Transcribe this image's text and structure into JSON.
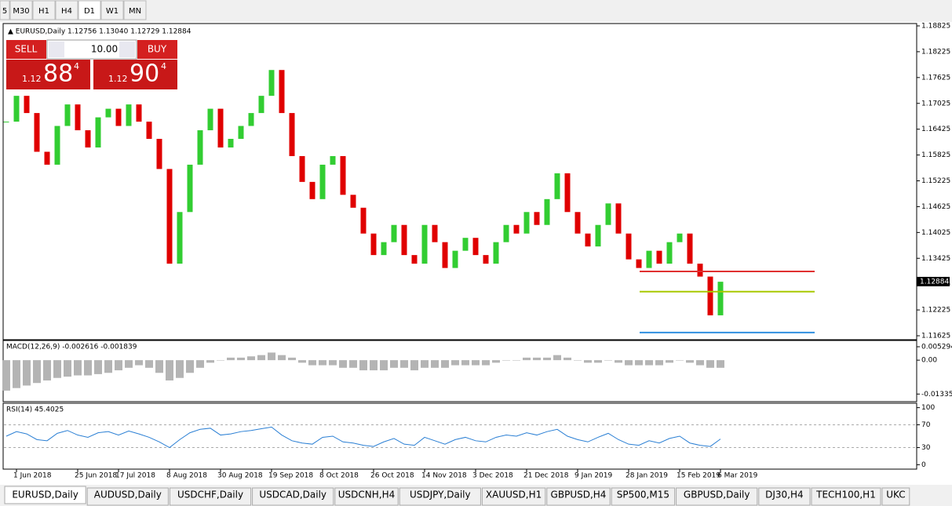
{
  "toolbar": {
    "timeframes": [
      "5",
      "M30",
      "H1",
      "H4",
      "D1",
      "W1",
      "MN"
    ]
  },
  "chart_header": "EURUSD,Daily  1.12756 1.13040 1.12729 1.12884",
  "trade_panel": {
    "sell": "SELL",
    "buy": "BUY",
    "lots": "10.00",
    "sell_big": "1.12",
    "sell_digits": "88",
    "sell_pip": "4",
    "buy_big": "1.12",
    "buy_digits": "90",
    "buy_pip": "4"
  },
  "price_chart": {
    "type": "candlestick",
    "up_color": "#32cd32",
    "down_color": "#e00000",
    "categories": [
      null,
      "1 Jun 2018",
      null,
      null,
      null,
      null,
      null,
      "25 Jun 2018",
      null,
      null,
      null,
      "17 Jul 2018",
      null,
      null,
      null,
      null,
      "8 Aug 2018",
      null,
      null,
      null,
      null,
      "30 Aug 2018",
      null,
      null,
      null,
      null,
      "19 Sep 2018",
      null,
      null,
      null,
      null,
      "8 Oct 2018",
      null,
      null,
      null,
      null,
      "26 Oct 2018",
      null,
      null,
      null,
      null,
      "14 Nov 2018",
      null,
      null,
      null,
      null,
      "3 Dec 2018",
      null,
      null,
      null,
      null,
      "21 Dec 2018",
      null,
      null,
      null,
      null,
      "9 Jan 2019",
      null,
      null,
      null,
      null,
      "28 Jan 2019",
      null,
      null,
      null,
      null,
      "15 Feb 2019",
      null,
      null,
      null,
      "6 Mar 2019"
    ],
    "closes": [
      1.166,
      1.172,
      1.168,
      1.159,
      1.156,
      1.165,
      1.17,
      1.164,
      1.16,
      1.167,
      1.169,
      1.165,
      1.17,
      1.166,
      1.162,
      1.155,
      1.133,
      1.145,
      1.156,
      1.164,
      1.169,
      1.16,
      1.162,
      1.165,
      1.168,
      1.172,
      1.178,
      1.168,
      1.158,
      1.152,
      1.148,
      1.156,
      1.158,
      1.149,
      1.146,
      1.14,
      1.135,
      1.138,
      1.142,
      1.135,
      1.133,
      1.142,
      1.138,
      1.132,
      1.136,
      1.139,
      1.135,
      1.133,
      1.138,
      1.142,
      1.14,
      1.145,
      1.142,
      1.148,
      1.154,
      1.145,
      1.14,
      1.137,
      1.142,
      1.147,
      1.14,
      1.134,
      1.132,
      1.136,
      1.133,
      1.138,
      1.14,
      1.133,
      1.13,
      1.121,
      1.1288
    ],
    "ylim": [
      1.11625,
      1.18825
    ],
    "yticks": [
      1.18825,
      1.18225,
      1.17625,
      1.17025,
      1.16425,
      1.15825,
      1.15225,
      1.14625,
      1.14025,
      1.13425,
      1.12825,
      1.12225,
      1.11625
    ],
    "levels": [
      {
        "value": 1.1312,
        "color": "#e03030"
      },
      {
        "value": 1.1265,
        "color": "#a8c800"
      },
      {
        "value": 1.117,
        "color": "#3090e0"
      }
    ],
    "current_price": 1.12884
  },
  "macd": {
    "title": "MACD(12,26,9) -0.002616 -0.001839",
    "color": "#b4b4b4",
    "values": [
      -0.012,
      -0.011,
      -0.01,
      -0.009,
      -0.008,
      -0.007,
      -0.0065,
      -0.006,
      -0.006,
      -0.0055,
      -0.005,
      -0.004,
      -0.003,
      -0.002,
      -0.003,
      -0.005,
      -0.008,
      -0.007,
      -0.005,
      -0.003,
      -0.001,
      0,
      0.001,
      0.001,
      0.0015,
      0.002,
      0.003,
      0.002,
      0.001,
      -0.001,
      -0.002,
      -0.002,
      -0.002,
      -0.003,
      -0.003,
      -0.004,
      -0.004,
      -0.004,
      -0.003,
      -0.003,
      -0.004,
      -0.003,
      -0.003,
      -0.003,
      -0.002,
      -0.002,
      -0.002,
      -0.002,
      -0.001,
      0,
      0,
      0.001,
      0.001,
      0.001,
      0.002,
      0.001,
      0,
      -0.001,
      -0.001,
      0,
      -0.001,
      -0.002,
      -0.002,
      -0.002,
      -0.002,
      -0.001,
      0,
      -0.001,
      -0.002,
      -0.003,
      -0.003
    ],
    "ylim": [
      -0.0145,
      0.0056
    ],
    "yticks": [
      0.005294,
      {
        "value": 0,
        "label": "0.00"
      },
      -0.013353
    ]
  },
  "rsi": {
    "title": "RSI(14) 45.4025",
    "color": "#2a7fd4",
    "values": [
      50,
      58,
      54,
      44,
      42,
      55,
      60,
      52,
      48,
      56,
      58,
      52,
      59,
      54,
      48,
      40,
      30,
      44,
      56,
      62,
      64,
      52,
      54,
      58,
      60,
      63,
      66,
      52,
      42,
      38,
      36,
      48,
      50,
      40,
      38,
      34,
      32,
      40,
      46,
      36,
      34,
      48,
      42,
      36,
      44,
      48,
      42,
      40,
      48,
      52,
      50,
      56,
      52,
      58,
      62,
      50,
      44,
      40,
      48,
      55,
      44,
      36,
      34,
      42,
      38,
      46,
      50,
      38,
      34,
      32,
      45
    ],
    "ylim": [
      -5,
      105
    ],
    "yticks": [
      100,
      70,
      30,
      0
    ]
  },
  "bottom_tabs": [
    "EURUSD,Daily",
    "AUDUSD,Daily",
    "USDCHF,Daily",
    "USDCAD,Daily",
    "USDCNH,H4",
    "USDJPY,Daily",
    "XAUUSD,H1",
    "GBPUSD,H4",
    "SP500,M15",
    "GBPUSD,Daily",
    "DJ30,H4",
    "TECH100,H1",
    "UKC"
  ]
}
